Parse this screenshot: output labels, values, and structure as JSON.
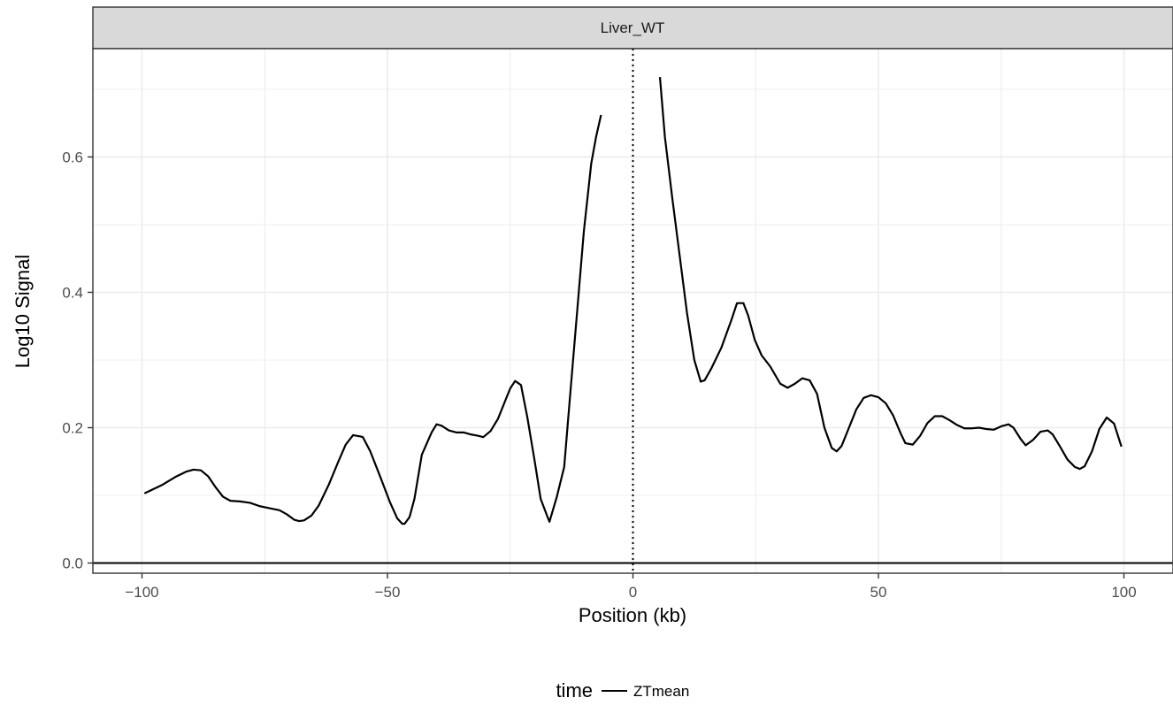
{
  "chart_data": {
    "type": "line",
    "facet_label": "Liver_WT",
    "xlabel": "Position (kb)",
    "ylabel": "Log10 Signal",
    "xlim": [
      -110,
      110
    ],
    "ylim": [
      -0.015,
      0.76
    ],
    "x_ticks": [
      -100,
      -50,
      0,
      50,
      100
    ],
    "x_tick_labels": [
      "−100",
      "−50",
      "0",
      "50",
      "100"
    ],
    "y_ticks": [
      0.0,
      0.2,
      0.4,
      0.6
    ],
    "y_tick_labels": [
      "0.0",
      "0.2",
      "0.4",
      "0.6"
    ],
    "grid": true,
    "hline": 0,
    "vline": 0,
    "legend": {
      "title": "time",
      "position": "bottom",
      "entries": [
        "ZTmean"
      ]
    },
    "series": [
      {
        "name": "ZTmean",
        "color": "#000000",
        "segments": [
          [
            [
              -99.5,
              0.103
            ],
            [
              -96,
              0.115
            ],
            [
              -93,
              0.128
            ],
            [
              -91,
              0.135
            ],
            [
              -89.5,
              0.138
            ],
            [
              -88,
              0.137
            ],
            [
              -86.5,
              0.128
            ],
            [
              -85,
              0.112
            ],
            [
              -83.5,
              0.098
            ],
            [
              -82,
              0.092
            ],
            [
              -80,
              0.091
            ],
            [
              -78,
              0.089
            ],
            [
              -76,
              0.084
            ],
            [
              -74,
              0.081
            ],
            [
              -72,
              0.078
            ],
            [
              -70.5,
              0.072
            ],
            [
              -69,
              0.064
            ],
            [
              -68,
              0.062
            ],
            [
              -67,
              0.063
            ],
            [
              -65.5,
              0.07
            ],
            [
              -64,
              0.085
            ],
            [
              -62,
              0.115
            ],
            [
              -60,
              0.15
            ],
            [
              -58.5,
              0.175
            ],
            [
              -57,
              0.189
            ],
            [
              -55.5,
              0.187
            ],
            [
              -55,
              0.186
            ],
            [
              -53.5,
              0.165
            ],
            [
              -51.5,
              0.128
            ],
            [
              -49.5,
              0.09
            ],
            [
              -48,
              0.066
            ],
            [
              -47,
              0.058
            ],
            [
              -46.5,
              0.058
            ],
            [
              -45.5,
              0.068
            ],
            [
              -44.5,
              0.095
            ],
            [
              -43,
              0.16
            ],
            [
              -41,
              0.193
            ],
            [
              -40,
              0.205
            ],
            [
              -39,
              0.203
            ],
            [
              -37.5,
              0.196
            ],
            [
              -36,
              0.193
            ],
            [
              -34.5,
              0.193
            ],
            [
              -33,
              0.19
            ],
            [
              -31.5,
              0.188
            ],
            [
              -30.5,
              0.186
            ],
            [
              -29,
              0.195
            ],
            [
              -27.5,
              0.213
            ],
            [
              -26,
              0.24
            ],
            [
              -25,
              0.258
            ],
            [
              -24,
              0.269
            ],
            [
              -22.8,
              0.263
            ],
            [
              -21.5,
              0.215
            ],
            [
              -20,
              0.15
            ],
            [
              -18.8,
              0.095
            ],
            [
              -17.5,
              0.07
            ],
            [
              -17,
              0.061
            ],
            [
              -15.5,
              0.098
            ],
            [
              -14,
              0.142
            ],
            [
              -13,
              0.23
            ],
            [
              -11.5,
              0.36
            ],
            [
              -10,
              0.49
            ],
            [
              -8.5,
              0.59
            ],
            [
              -7.5,
              0.63
            ],
            [
              -6.5,
              0.662
            ]
          ],
          [
            [
              5.5,
              0.718
            ],
            [
              6.5,
              0.63
            ],
            [
              8,
              0.54
            ],
            [
              9.5,
              0.455
            ],
            [
              11,
              0.37
            ],
            [
              12.5,
              0.3
            ],
            [
              13.8,
              0.268
            ],
            [
              14.6,
              0.27
            ],
            [
              16,
              0.288
            ],
            [
              18,
              0.318
            ],
            [
              20,
              0.358
            ],
            [
              21.2,
              0.384
            ],
            [
              22.5,
              0.384
            ],
            [
              23.5,
              0.365
            ],
            [
              24.8,
              0.33
            ],
            [
              26.2,
              0.307
            ],
            [
              28,
              0.29
            ],
            [
              30,
              0.265
            ],
            [
              31.5,
              0.259
            ],
            [
              33,
              0.265
            ],
            [
              34.5,
              0.273
            ],
            [
              36,
              0.27
            ],
            [
              37.5,
              0.25
            ],
            [
              39,
              0.2
            ],
            [
              40.5,
              0.17
            ],
            [
              41.5,
              0.165
            ],
            [
              42.5,
              0.173
            ],
            [
              44,
              0.2
            ],
            [
              45.5,
              0.227
            ],
            [
              47,
              0.244
            ],
            [
              48.5,
              0.248
            ],
            [
              50,
              0.245
            ],
            [
              51.5,
              0.236
            ],
            [
              53,
              0.218
            ],
            [
              54.5,
              0.192
            ],
            [
              55.5,
              0.177
            ],
            [
              57,
              0.175
            ],
            [
              58.5,
              0.188
            ],
            [
              60,
              0.207
            ],
            [
              61.5,
              0.217
            ],
            [
              63,
              0.217
            ],
            [
              64.5,
              0.211
            ],
            [
              66,
              0.204
            ],
            [
              67.5,
              0.199
            ],
            [
              69,
              0.199
            ],
            [
              70.5,
              0.2
            ],
            [
              72,
              0.198
            ],
            [
              73.5,
              0.197
            ],
            [
              75,
              0.202
            ],
            [
              76.5,
              0.205
            ],
            [
              77.5,
              0.2
            ],
            [
              79,
              0.183
            ],
            [
              80,
              0.174
            ],
            [
              81.5,
              0.182
            ],
            [
              83,
              0.194
            ],
            [
              84.5,
              0.196
            ],
            [
              85.5,
              0.19
            ],
            [
              87,
              0.172
            ],
            [
              88.5,
              0.153
            ],
            [
              90,
              0.142
            ],
            [
              91,
              0.139
            ],
            [
              92,
              0.143
            ],
            [
              93.5,
              0.165
            ],
            [
              95,
              0.198
            ],
            [
              96.5,
              0.215
            ],
            [
              98,
              0.206
            ],
            [
              99.5,
              0.172
            ]
          ]
        ]
      }
    ]
  }
}
